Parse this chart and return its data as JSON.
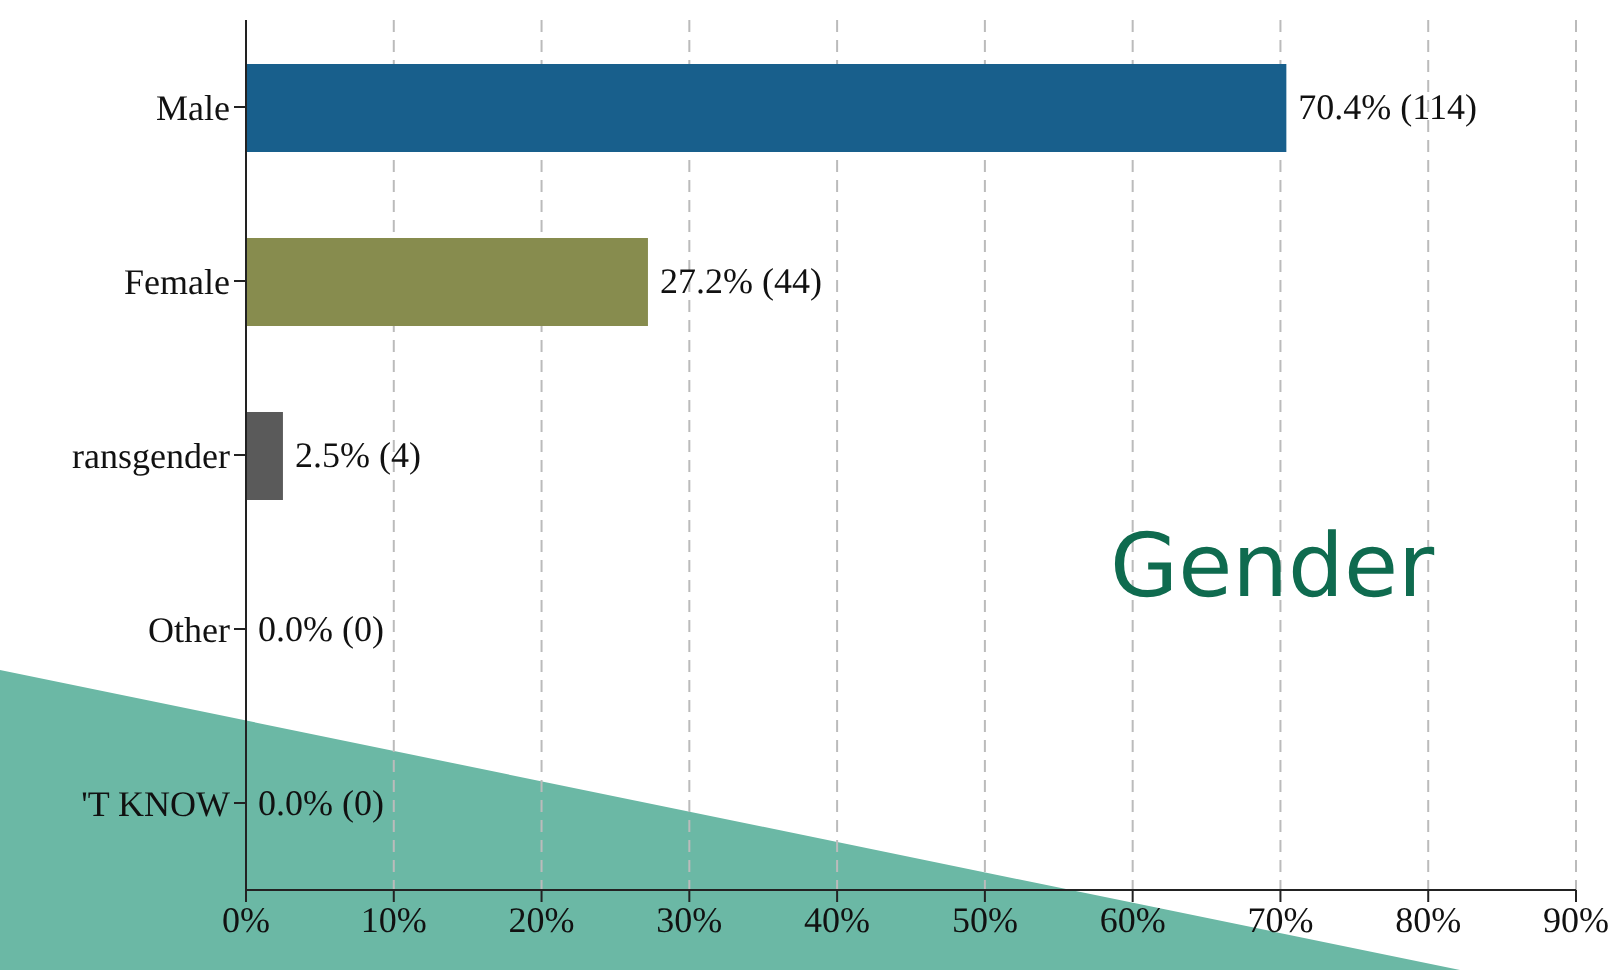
{
  "chart_data": {
    "type": "bar",
    "orientation": "horizontal",
    "title": "Gender",
    "categories": [
      "Male",
      "Female",
      "ransgender",
      "Other",
      "'T KNOW"
    ],
    "values": [
      70.4,
      27.2,
      2.5,
      0,
      0
    ],
    "colors": [
      "#185f8c",
      "#878c4e",
      "#5a5a5a",
      "#5a5a5a",
      "#5a5a5a"
    ],
    "value_labels": [
      "70.4% (114)",
      "27.2% (44)",
      "2.5% (4)",
      "0.0% (0)",
      "0.0% (0)"
    ],
    "xlim": [
      0,
      90
    ],
    "xticks": [
      {
        "value": 0,
        "label": "0%"
      },
      {
        "value": 10,
        "label": "10%"
      },
      {
        "value": 20,
        "label": "20%"
      },
      {
        "value": 30,
        "label": "30%"
      },
      {
        "value": 40,
        "label": "40%"
      },
      {
        "value": 50,
        "label": "50%"
      },
      {
        "value": 60,
        "label": "60%"
      },
      {
        "value": 70,
        "label": "70%"
      },
      {
        "value": 80,
        "label": "80%"
      },
      {
        "value": 90,
        "label": "90%"
      }
    ],
    "grid": "x",
    "legend": false
  }
}
